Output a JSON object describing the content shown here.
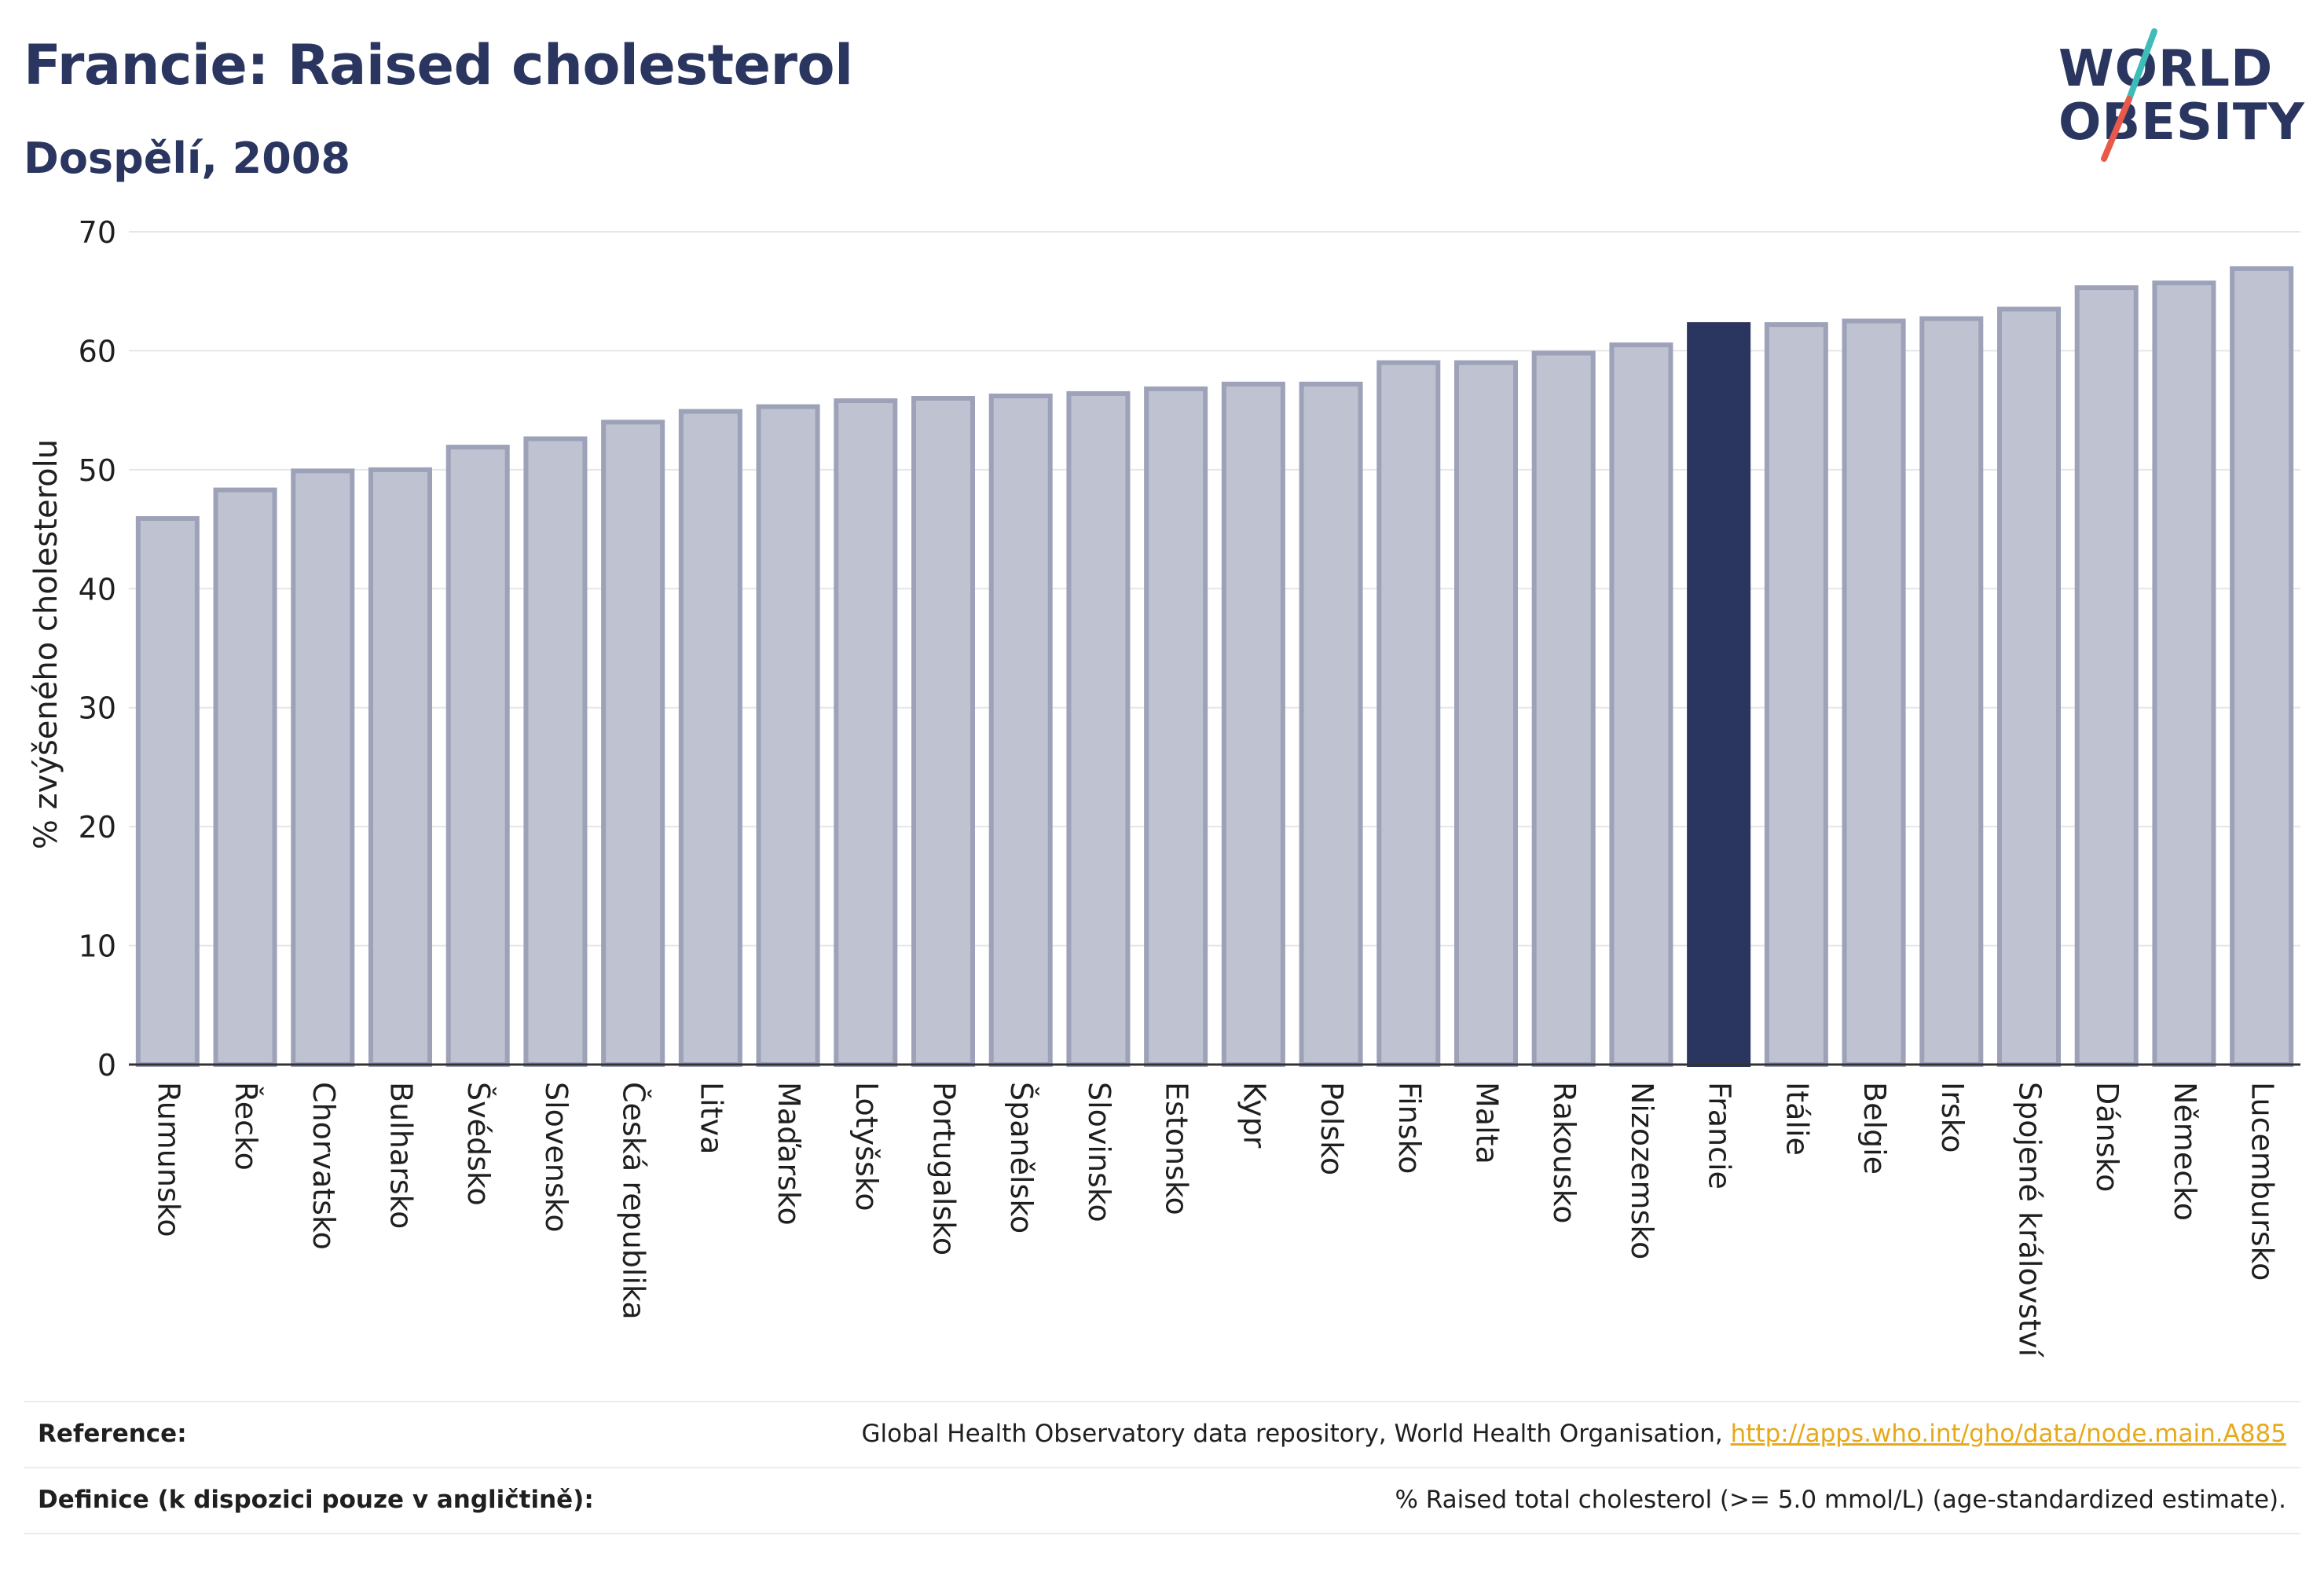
{
  "header": {
    "title": "Francie: Raised cholesterol",
    "subtitle": "Dospělí, 2008"
  },
  "logo": {
    "line1": "WORLD",
    "line2": "OBESITY",
    "accent_colors": [
      "#3dbcb8",
      "#e8594a"
    ]
  },
  "colors": {
    "bar_default_fill": "#bfc2d0",
    "bar_default_stroke": "#9da2b9",
    "bar_highlight": "#2a3560",
    "text": "#2a3560",
    "link": "#e6a91a"
  },
  "chart_data": {
    "type": "bar",
    "title": "Francie: Raised cholesterol",
    "subtitle": "Dospělí, 2008",
    "xlabel": "",
    "ylabel": "% zvýšeného cholesterolu",
    "ylim": [
      0,
      70
    ],
    "yticks": [
      0,
      10,
      20,
      30,
      40,
      50,
      60,
      70
    ],
    "grid": true,
    "highlight": "Francie",
    "categories": [
      "Rumunsko",
      "Řecko",
      "Chorvatsko",
      "Bulharsko",
      "Švédsko",
      "Slovensko",
      "Česká republika",
      "Litva",
      "Maďarsko",
      "Lotyšsko",
      "Portugalsko",
      "Španělsko",
      "Slovinsko",
      "Estonsko",
      "Kypr",
      "Polsko",
      "Finsko",
      "Malta",
      "Rakousko",
      "Nizozemsko",
      "Francie",
      "Itálie",
      "Belgie",
      "Irsko",
      "Spojené království",
      "Dánsko",
      "Německo",
      "Lucembursko"
    ],
    "values": [
      45.9,
      48.3,
      49.9,
      50.0,
      51.9,
      52.6,
      54.0,
      54.9,
      55.3,
      55.8,
      56.0,
      56.2,
      56.4,
      56.8,
      57.2,
      57.2,
      59.0,
      59.0,
      59.8,
      60.5,
      62.2,
      62.2,
      62.5,
      62.7,
      63.5,
      65.3,
      65.7,
      66.9
    ]
  },
  "reference": {
    "label": "Reference:",
    "text": "Global Health Observatory data repository, World Health Organisation, ",
    "link": "http://apps.who.int/gho/data/node.main.A885"
  },
  "definition": {
    "label": "Definice (k dispozici pouze v angličtině):",
    "text": "% Raised total cholesterol (>= 5.0 mmol/L) (age-standardized estimate)."
  }
}
